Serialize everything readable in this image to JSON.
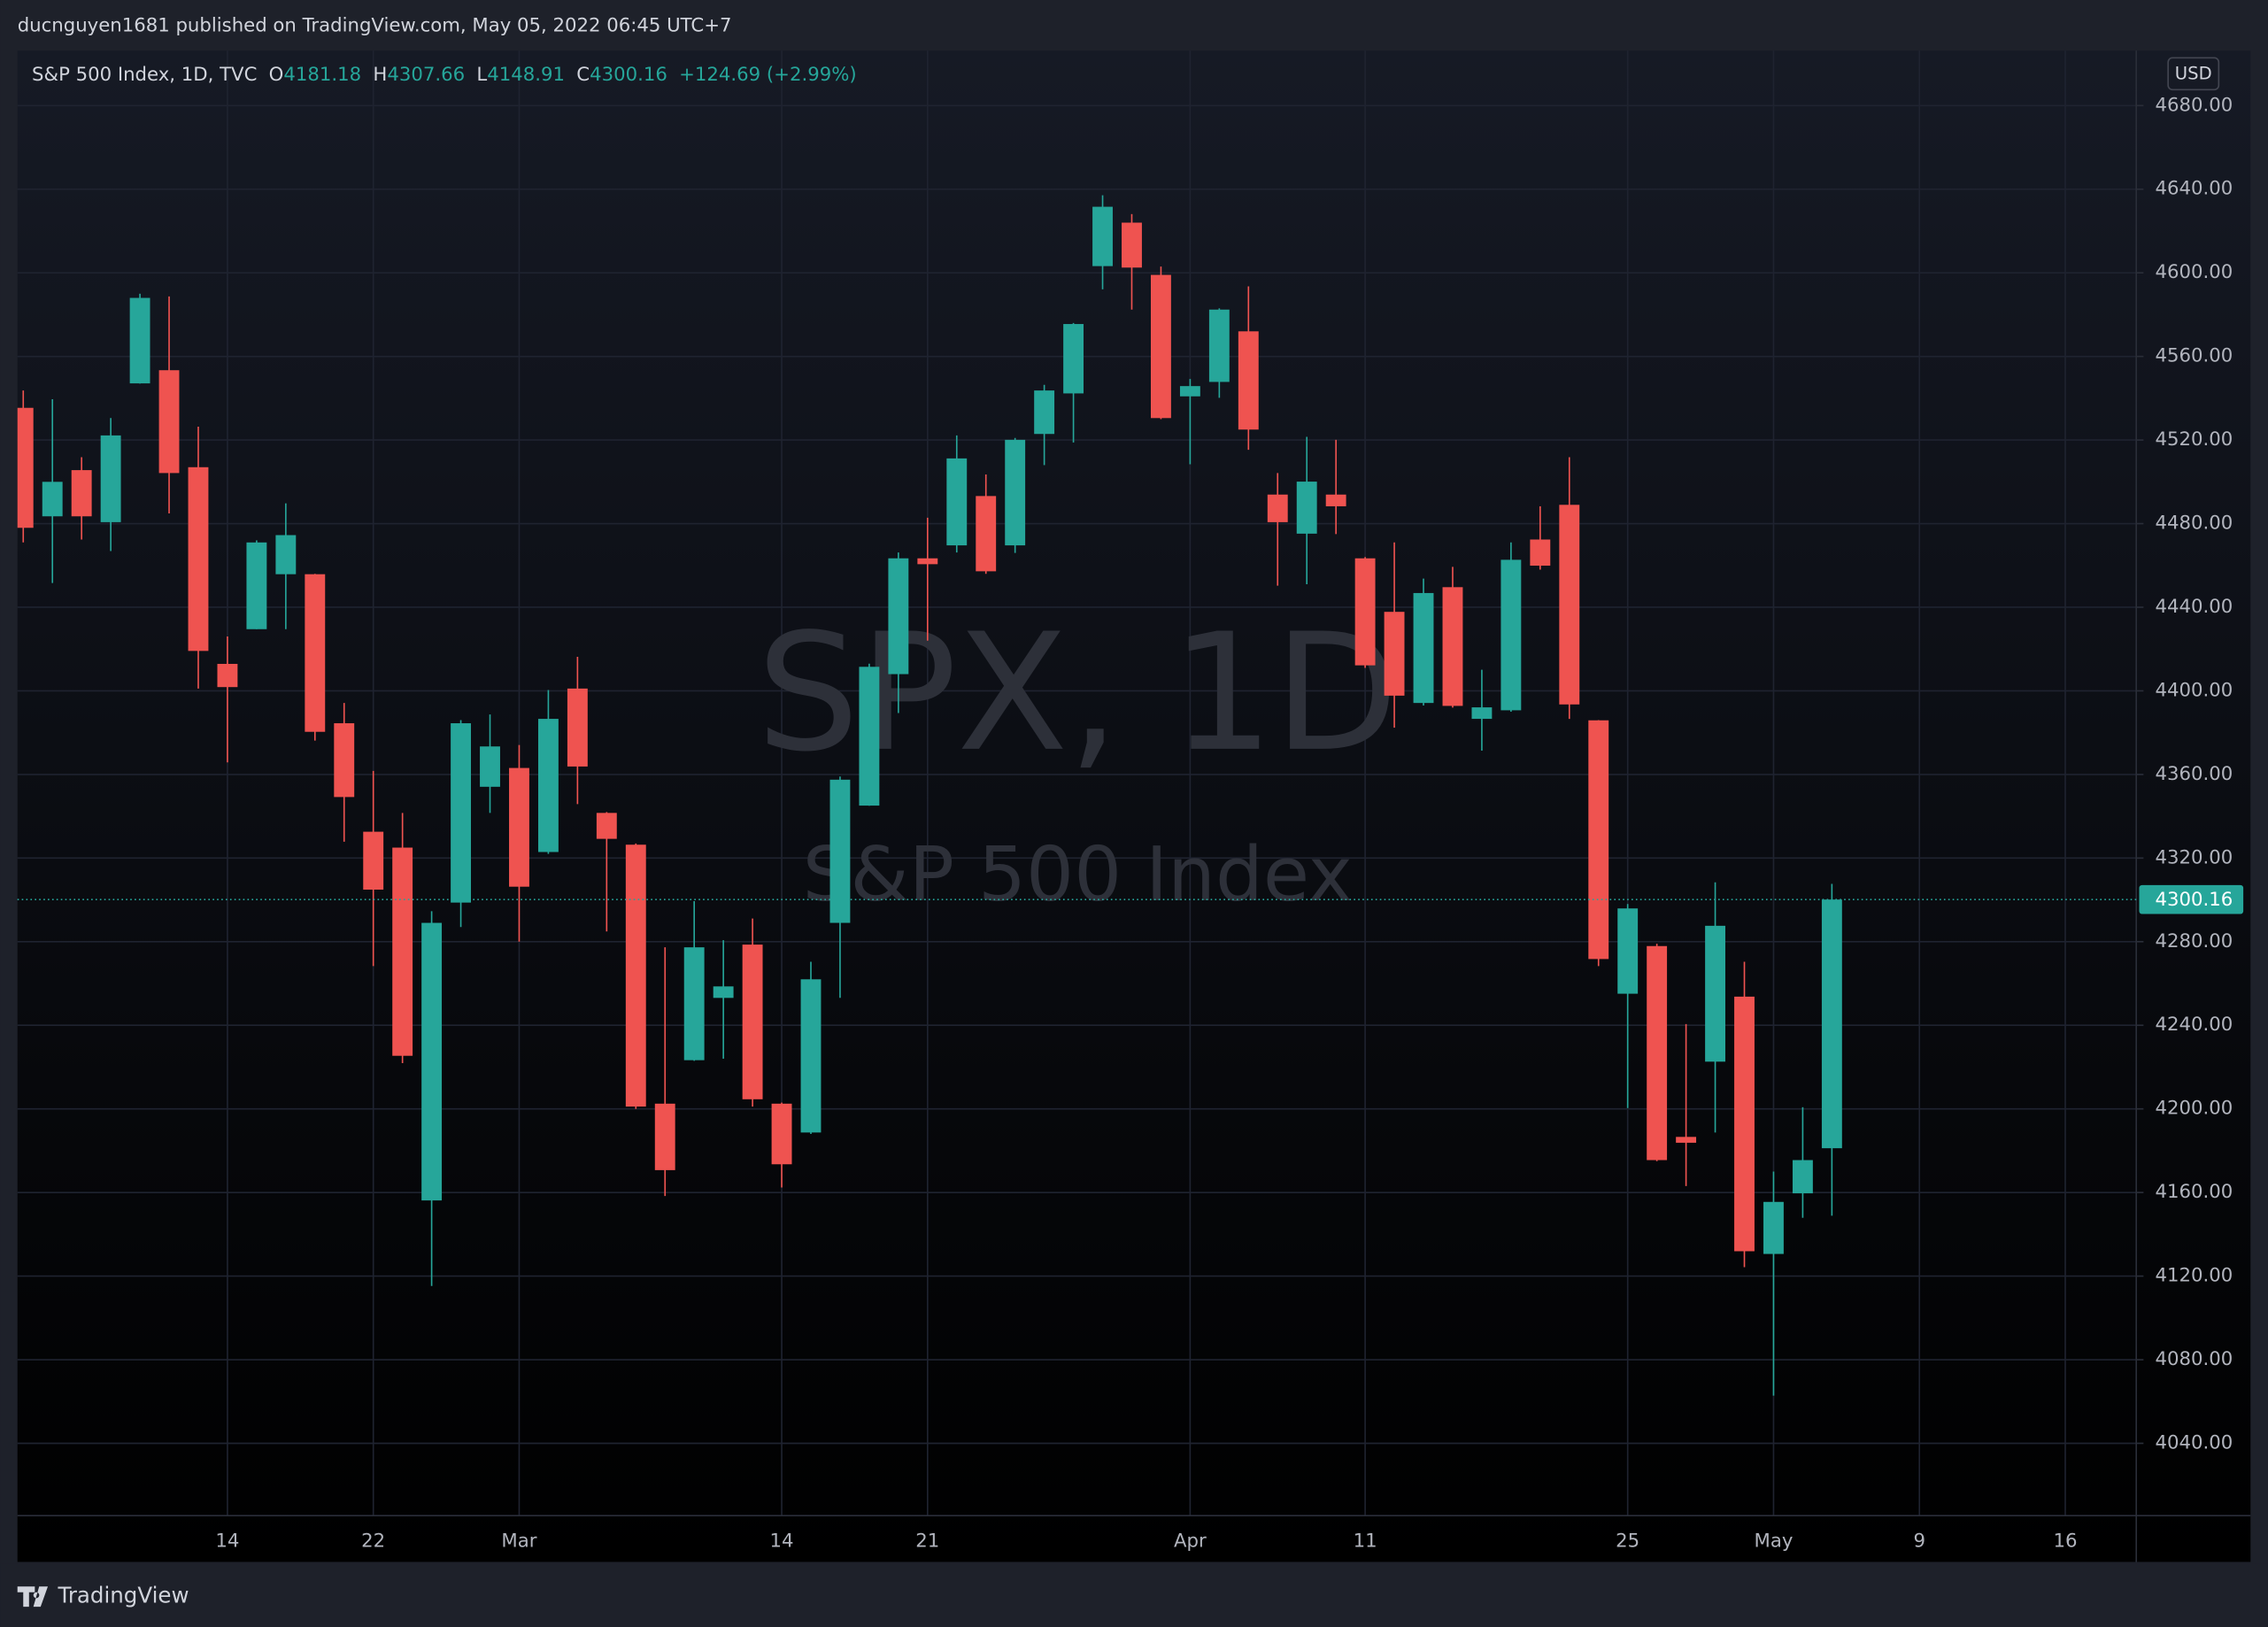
{
  "header": {
    "text": "ducnguyen1681 published on TradingView.com, May 05, 2022 06:45 UTC+7"
  },
  "chart_data": {
    "type": "candlestick",
    "legend": {
      "title": "S&P 500 Index, 1D, TVC",
      "o": "O",
      "h": "H",
      "l": "L",
      "c": "C",
      "change": "+124.69 (+2.99%)"
    },
    "watermark": "SPX, 1D",
    "watermark_subtitle": "S&P 500 Index",
    "currency": "USD",
    "categories": [
      null,
      null,
      null,
      null,
      null,
      null,
      null,
      "14",
      null,
      null,
      null,
      null,
      "22",
      null,
      null,
      null,
      null,
      "Mar",
      null,
      null,
      null,
      null,
      null,
      null,
      null,
      null,
      "14",
      null,
      null,
      null,
      null,
      "21",
      null,
      null,
      null,
      null,
      null,
      null,
      null,
      null,
      "Apr",
      null,
      null,
      null,
      null,
      null,
      "11",
      null,
      null,
      null,
      null,
      null,
      null,
      null,
      null,
      "25",
      null,
      null,
      null,
      null,
      "May",
      null,
      null,
      null,
      null,
      "9",
      null,
      null,
      null,
      null,
      "16"
    ],
    "series": [
      {
        "up_color": "#26a69a",
        "down_color": "#ef5350",
        "open": [
          4535.4,
          4483.5,
          4505.6,
          4480.7,
          4547.1,
          4553.4,
          4507,
          4412.9,
          4429.5,
          4455.8,
          4455.8,
          4384.5,
          4332.6,
          4325,
          4156.2,
          4298.7,
          4354.1,
          4363.1,
          4322.9,
          4401.1,
          4341.6,
          4326.4,
          4202.5,
          4223.3,
          4253.1,
          4278.6,
          4202.5,
          4188.7,
          4289,
          4345.1,
          4408,
          4463.4,
          4469.6,
          4493.2,
          4469.6,
          4522.9,
          4542.3,
          4603.2,
          4624,
          4599,
          4540.9,
          4547.8,
          4572,
          4493.9,
          4475.2,
          4493.9,
          4463.4,
          4437.8,
          4394.2,
          4449.6,
          4386.6,
          4390.7,
          4472.4,
          4489,
          4385.9,
          4255.1,
          4277.9,
          4186.6,
          4222.6,
          4253.7,
          4130.6,
          4159.6,
          4181.18,
          null,
          null,
          null,
          null,
          null,
          null,
          null,
          null
        ],
        "high": [
          4543.7,
          4539.5,
          4511.8,
          4530.5,
          4590,
          4588.7,
          4526.4,
          4426,
          4472,
          4489.7,
          4456,
          4394.2,
          4361.7,
          4341.6,
          4294.6,
          4386,
          4388.7,
          4374.1,
          4400.4,
          4416.3,
          4342,
          4327,
          4277.3,
          4299.4,
          4280.7,
          4291.1,
          4203,
          4270.4,
          4359,
          4413,
          4466.2,
          4482.8,
          4522.2,
          4503.5,
          4521,
          4546.4,
          4576,
          4637.1,
          4628.1,
          4603,
          4549.2,
          4583,
          4593.5,
          4504.2,
          4521.5,
          4520.1,
          4464,
          4471,
          4453.7,
          4459.3,
          4410.1,
          4471,
          4488.3,
          4511.8,
          4386,
          4298,
          4279,
          4240.6,
          4308.4,
          4270.4,
          4170,
          4200.8,
          4307.66,
          null,
          null,
          null,
          null,
          null,
          null,
          null,
          null
        ],
        "low": [
          4471,
          4451.6,
          4472.4,
          4466.9,
          4547,
          4484.9,
          4401.1,
          4365.8,
          4429.5,
          4429.5,
          4376.2,
          4327.8,
          4268.3,
          4221.9,
          4115.3,
          4287,
          4341.6,
          4280,
          4322,
          4345.8,
          4284.9,
          4200,
          4158.3,
          4223,
          4224,
          4201.1,
          4162.4,
          4188,
          4253.1,
          4345,
          4389.4,
          4424,
          4466.2,
          4456,
          4466,
          4508,
          4518.8,
          4592.1,
          4582.4,
          4530,
          4508.4,
          4540.2,
          4515.3,
          4450.3,
          4451,
          4475,
          4411,
          4382.4,
          4393,
          4392,
          4371.4,
          4390,
          4458,
          4386.6,
          4268.3,
          4200.4,
          4175,
          4163.1,
          4188.7,
          4124.3,
          4062.8,
          4147.9,
          4148.91,
          null,
          null,
          null,
          null,
          null,
          null,
          null,
          null
        ],
        "close": [
          4478,
          4500,
          4483.5,
          4522.2,
          4588,
          4504.2,
          4419.1,
          4401.8,
          4471,
          4474.5,
          4380.4,
          4349.2,
          4304.9,
          4225.4,
          4289,
          4384.5,
          4373.4,
          4306.3,
          4386.6,
          4363.8,
          4329.2,
          4201.1,
          4170.7,
          4277.3,
          4258.6,
          4204.6,
          4173.5,
          4262,
          4357.5,
          4411.5,
          4463.4,
          4460.6,
          4511.2,
          4457.2,
          4520.1,
          4543.7,
          4575.5,
          4631.6,
          4602.5,
          4530.5,
          4545.8,
          4582.4,
          4525,
          4480.7,
          4500.1,
          4488.3,
          4412.2,
          4397.7,
          4446.8,
          4392.8,
          4392.1,
          4462.7,
          4459.9,
          4393.5,
          4271.7,
          4295.9,
          4175.5,
          4183.8,
          4287.6,
          4131.9,
          4155.5,
          4175.5,
          4300.16,
          null,
          null,
          null,
          null,
          null,
          null,
          null,
          null
        ]
      }
    ],
    "ylim": [
      4005.4,
      4706.3
    ],
    "yticks": [
      {
        "value": 4040,
        "label": "4040.00"
      },
      {
        "value": 4080,
        "label": "4080.00"
      },
      {
        "value": 4120,
        "label": "4120.00"
      },
      {
        "value": 4160,
        "label": "4160.00"
      },
      {
        "value": 4200,
        "label": "4200.00"
      },
      {
        "value": 4240,
        "label": "4240.00"
      },
      {
        "value": 4280,
        "label": "4280.00"
      },
      {
        "value": 4320,
        "label": "4320.00"
      },
      {
        "value": 4360,
        "label": "4360.00"
      },
      {
        "value": 4400,
        "label": "4400.00"
      },
      {
        "value": 4440,
        "label": "4440.00"
      },
      {
        "value": 4480,
        "label": "4480.00"
      },
      {
        "value": 4520,
        "label": "4520.00"
      },
      {
        "value": 4560,
        "label": "4560.00"
      },
      {
        "value": 4600,
        "label": "4600.00"
      },
      {
        "value": 4640,
        "label": "4640.00"
      },
      {
        "value": 4680,
        "label": "4680.00"
      }
    ],
    "grid": true,
    "last_price_line": true
  },
  "footer": {
    "brand": "TradingView"
  }
}
